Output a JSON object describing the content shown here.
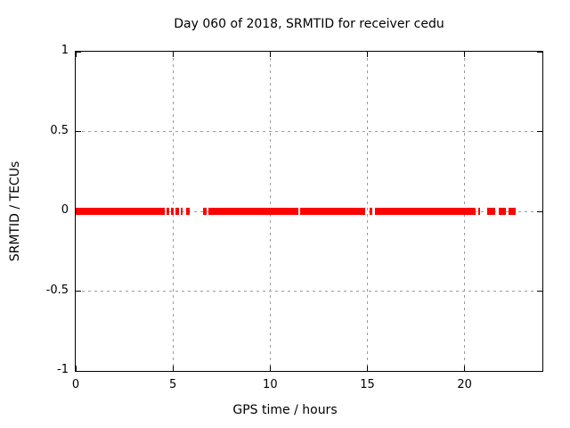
{
  "figure": {
    "title": "Day 060 of 2018, SRMTID for receiver cedu",
    "xlabel": "GPS time / hours",
    "ylabel": "SRMTID / TECUs"
  },
  "chart_data": {
    "type": "scatter",
    "title": "Day 060 of 2018, SRMTID for receiver cedu",
    "xlabel": "GPS time / hours",
    "ylabel": "SRMTID / TECUs",
    "xlim": [
      0,
      24
    ],
    "ylim": [
      -1,
      1
    ],
    "xticks": [
      0,
      5,
      10,
      15,
      20
    ],
    "yticks": [
      1,
      0.5,
      0,
      -0.5,
      -1
    ],
    "grid": true,
    "legend": "none",
    "grid_color": "#9b9b9b",
    "frame_color": "#000000",
    "series": [
      {
        "name": "SRMTID",
        "color": "#ff0000",
        "marker": "filled-square",
        "y_value": 0,
        "x_segments_hours": [
          [
            0,
            4.57
          ],
          [
            4.66,
            4.8
          ],
          [
            4.89,
            5.03
          ],
          [
            5.12,
            5.3
          ],
          [
            5.39,
            5.49
          ],
          [
            5.67,
            5.85
          ],
          [
            6.54,
            6.72
          ],
          [
            6.81,
            11.43
          ],
          [
            11.52,
            14.9
          ],
          [
            15.13,
            15.27
          ],
          [
            15.41,
            20.57
          ],
          [
            20.71,
            20.8
          ],
          [
            21.17,
            21.58
          ],
          [
            21.76,
            22.13
          ],
          [
            22.26,
            22.63
          ]
        ]
      }
    ]
  }
}
